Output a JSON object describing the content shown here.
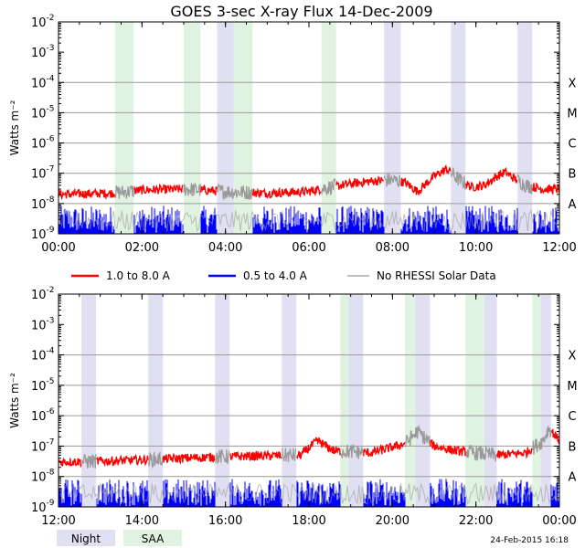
{
  "chart_data": {
    "type": "line",
    "title": "GOES 3-sec X-ray Flux   14-Dec-2009",
    "ylabel": "Watts m⁻²",
    "ylim": [
      1e-09,
      0.01
    ],
    "yscale": "log",
    "y_ticks": [
      {
        "exp": "-2",
        "value": 0.01
      },
      {
        "exp": "-3",
        "value": 0.001
      },
      {
        "exp": "-4",
        "value": 0.0001
      },
      {
        "exp": "-5",
        "value": 1e-05
      },
      {
        "exp": "-6",
        "value": 1e-06
      },
      {
        "exp": "-7",
        "value": 1e-07
      },
      {
        "exp": "-8",
        "value": 1e-08
      },
      {
        "exp": "-9",
        "value": 1e-09
      }
    ],
    "flare_classes": [
      {
        "label": "X",
        "value": 0.0001
      },
      {
        "label": "M",
        "value": 1e-05
      },
      {
        "label": "C",
        "value": 1e-06
      },
      {
        "label": "B",
        "value": 1e-07
      },
      {
        "label": "A",
        "value": 1e-08
      }
    ],
    "legend": [
      {
        "name": "1.0 to 8.0 A",
        "color": "#ff0000"
      },
      {
        "name": "0.5 to 4.0 A",
        "color": "#0000ff"
      },
      {
        "name": "No RHESSI Solar Data",
        "color": "#999999"
      }
    ],
    "bottom_legend": [
      {
        "name": "Night",
        "color": "#e0e0f2"
      },
      {
        "name": "SAA",
        "color": "#e0f2e0"
      }
    ],
    "timestamp": "24-Feb-2015 16:18",
    "panels": [
      {
        "name": "top",
        "xlim": [
          0,
          12
        ],
        "x_ticks": [
          {
            "value": 0,
            "label": "00:00"
          },
          {
            "value": 2,
            "label": "02:00"
          },
          {
            "value": 4,
            "label": "04:00"
          },
          {
            "value": 6,
            "label": "06:00"
          },
          {
            "value": 8,
            "label": "08:00"
          },
          {
            "value": 10,
            "label": "10:00"
          },
          {
            "value": 12,
            "label": "12:00"
          }
        ],
        "night": [
          [
            3.8,
            4.2
          ],
          [
            7.8,
            8.2
          ],
          [
            9.4,
            9.75
          ],
          [
            11.0,
            11.35
          ]
        ],
        "saa": [
          [
            1.35,
            1.8
          ],
          [
            3.0,
            3.4
          ],
          [
            4.2,
            4.65
          ],
          [
            6.3,
            6.65
          ]
        ],
        "long_channel_knots": [
          [
            0,
            2e-08
          ],
          [
            1.3,
            2.2e-08
          ],
          [
            2,
            2.8e-08
          ],
          [
            3,
            3e-08
          ],
          [
            4,
            2.5e-08
          ],
          [
            5,
            2.2e-08
          ],
          [
            6,
            2.5e-08
          ],
          [
            6.5,
            3.5e-08
          ],
          [
            7,
            4.5e-08
          ],
          [
            7.5,
            5.5e-08
          ],
          [
            8,
            6e-08
          ],
          [
            8.3,
            5e-08
          ],
          [
            8.6,
            2.5e-08
          ],
          [
            9,
            8e-08
          ],
          [
            9.3,
            1.4e-07
          ],
          [
            9.6,
            6e-08
          ],
          [
            9.9,
            3.5e-08
          ],
          [
            10.2,
            4e-08
          ],
          [
            10.5,
            8e-08
          ],
          [
            10.7,
            1.1e-07
          ],
          [
            10.9,
            7e-08
          ],
          [
            11.2,
            4e-08
          ],
          [
            11.6,
            3e-08
          ],
          [
            12,
            3e-08
          ]
        ],
        "short_channel_level": 3e-09
      },
      {
        "name": "bottom",
        "xlim": [
          12,
          24
        ],
        "x_ticks": [
          {
            "value": 12,
            "label": "12:00"
          },
          {
            "value": 14,
            "label": "14:00"
          },
          {
            "value": 16,
            "label": "16:00"
          },
          {
            "value": 18,
            "label": "18:00"
          },
          {
            "value": 20,
            "label": "20:00"
          },
          {
            "value": 22,
            "label": "22:00"
          },
          {
            "value": 24,
            "label": "00:00"
          }
        ],
        "night": [
          [
            12.55,
            12.9
          ],
          [
            14.15,
            14.5
          ],
          [
            15.75,
            16.1
          ],
          [
            17.35,
            17.7
          ],
          [
            18.95,
            19.3
          ],
          [
            20.55,
            20.9
          ],
          [
            22.2,
            22.5
          ],
          [
            23.55,
            23.8
          ]
        ],
        "saa": [
          [
            18.75,
            18.95
          ],
          [
            20.3,
            20.55
          ],
          [
            21.75,
            22.2
          ],
          [
            23.35,
            23.55
          ]
        ],
        "long_channel_knots": [
          [
            12,
            3e-08
          ],
          [
            13,
            3.2e-08
          ],
          [
            14,
            3.5e-08
          ],
          [
            15,
            4e-08
          ],
          [
            16,
            4.5e-08
          ],
          [
            17,
            4.8e-08
          ],
          [
            17.8,
            5e-08
          ],
          [
            18.2,
            1.5e-07
          ],
          [
            18.6,
            7e-08
          ],
          [
            19.5,
            6e-08
          ],
          [
            20.3,
            1.2e-07
          ],
          [
            20.6,
            3e-07
          ],
          [
            21,
            1e-07
          ],
          [
            21.5,
            7e-08
          ],
          [
            22.5,
            5e-08
          ],
          [
            23.2,
            6e-08
          ],
          [
            23.6,
            1.5e-07
          ],
          [
            23.75,
            4e-07
          ],
          [
            24,
            1.5e-07
          ]
        ],
        "short_channel_level": 3e-09
      }
    ]
  }
}
